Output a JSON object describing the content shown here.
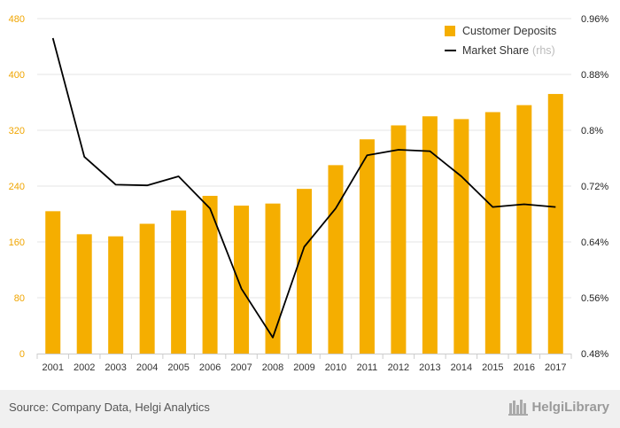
{
  "chart_data": {
    "type": "bar+line",
    "categories": [
      "2001",
      "2002",
      "2003",
      "2004",
      "2005",
      "2006",
      "2007",
      "2008",
      "2009",
      "2010",
      "2011",
      "2012",
      "2013",
      "2014",
      "2015",
      "2016",
      "2017"
    ],
    "series": [
      {
        "name": "Customer Deposits",
        "type": "bar",
        "axis": "left",
        "color": "#f5ae00",
        "values": [
          204,
          171,
          168,
          186,
          205,
          226,
          212,
          215,
          236,
          270,
          307,
          327,
          340,
          336,
          346,
          356,
          372
        ]
      },
      {
        "name": "Market Share",
        "type": "line",
        "axis": "right",
        "color": "#000000",
        "values": [
          0.932,
          0.762,
          0.722,
          0.721,
          0.734,
          0.688,
          0.573,
          0.503,
          0.633,
          0.688,
          0.764,
          0.772,
          0.77,
          0.734,
          0.69,
          0.694,
          0.69
        ]
      }
    ],
    "left_axis": {
      "min": 0,
      "max": 480,
      "ticks": [
        "0",
        "80",
        "160",
        "240",
        "320",
        "400",
        "480"
      ],
      "tick_color": "#f0a500"
    },
    "right_axis": {
      "min": 0.48,
      "max": 0.96,
      "ticks": [
        "0.48%",
        "0.56%",
        "0.64%",
        "0.72%",
        "0.8%",
        "0.88%",
        "0.96%"
      ]
    },
    "legend": {
      "position": "top-right",
      "items": [
        {
          "label": "Customer Deposits",
          "note": ""
        },
        {
          "label": "Market Share",
          "note": "(rhs)"
        }
      ]
    },
    "grid": true
  },
  "footer": {
    "source": "Source: Company Data, Helgi Analytics",
    "logo_text": "HelgiLibrary"
  }
}
